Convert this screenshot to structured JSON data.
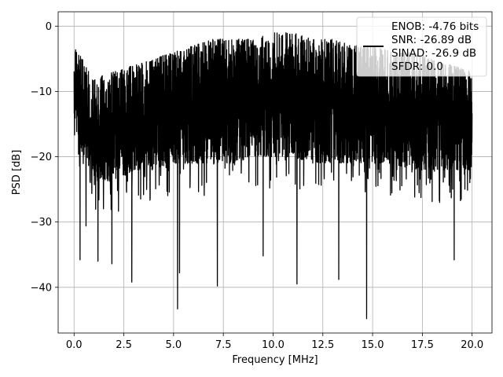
{
  "chart_data": {
    "type": "line",
    "title": "",
    "xlabel": "Frequency [MHz]",
    "ylabel": "PSD [dB]",
    "xlim": [
      -0.8,
      21.0
    ],
    "ylim": [
      -47,
      2.2
    ],
    "xticks": [
      0.0,
      2.5,
      5.0,
      7.5,
      10.0,
      12.5,
      15.0,
      17.5,
      20.0
    ],
    "xtick_labels": [
      "0.0",
      "2.5",
      "5.0",
      "7.5",
      "10.0",
      "12.5",
      "15.0",
      "17.5",
      "20.0"
    ],
    "yticks": [
      0,
      -10,
      -20,
      -30,
      -40
    ],
    "ytick_labels": [
      "0",
      "−10",
      "−20",
      "−30",
      "−40"
    ],
    "grid": true,
    "legend": {
      "placement": "top-right",
      "entries": [
        "ENOB: -4.76 bits",
        "SNR: -26.89 dB",
        "SINAD: -26.9 dB",
        "SFDR: 0.0"
      ]
    },
    "series": [
      {
        "color": "#000000",
        "x_range": [
          0.0,
          20.0
        ],
        "band_low": [
          -17,
          -23,
          -24,
          -22,
          -22,
          -21,
          -21,
          -21,
          -21,
          -20,
          -20,
          -20,
          -21,
          -21,
          -21,
          -21,
          -21,
          -22,
          -22,
          -22,
          -22
        ],
        "band_high": [
          -3,
          -8,
          -7,
          -6,
          -5,
          -4,
          -3,
          -2,
          -2,
          -2,
          -1,
          -1,
          -2,
          -2,
          -3,
          -3,
          -4,
          -4,
          -5,
          -6,
          -7
        ],
        "dips": [
          {
            "x": 0.3,
            "y": -35.8
          },
          {
            "x": 0.6,
            "y": -30.6
          },
          {
            "x": 1.2,
            "y": -36.0
          },
          {
            "x": 1.9,
            "y": -36.4
          },
          {
            "x": 2.9,
            "y": -39.2
          },
          {
            "x": 5.3,
            "y": -37.8
          },
          {
            "x": 5.2,
            "y": -43.3
          },
          {
            "x": 7.2,
            "y": -39.8
          },
          {
            "x": 9.5,
            "y": -35.2
          },
          {
            "x": 11.2,
            "y": -39.5
          },
          {
            "x": 13.3,
            "y": -38.8
          },
          {
            "x": 14.7,
            "y": -44.8
          },
          {
            "x": 19.1,
            "y": -35.8
          }
        ]
      }
    ]
  }
}
